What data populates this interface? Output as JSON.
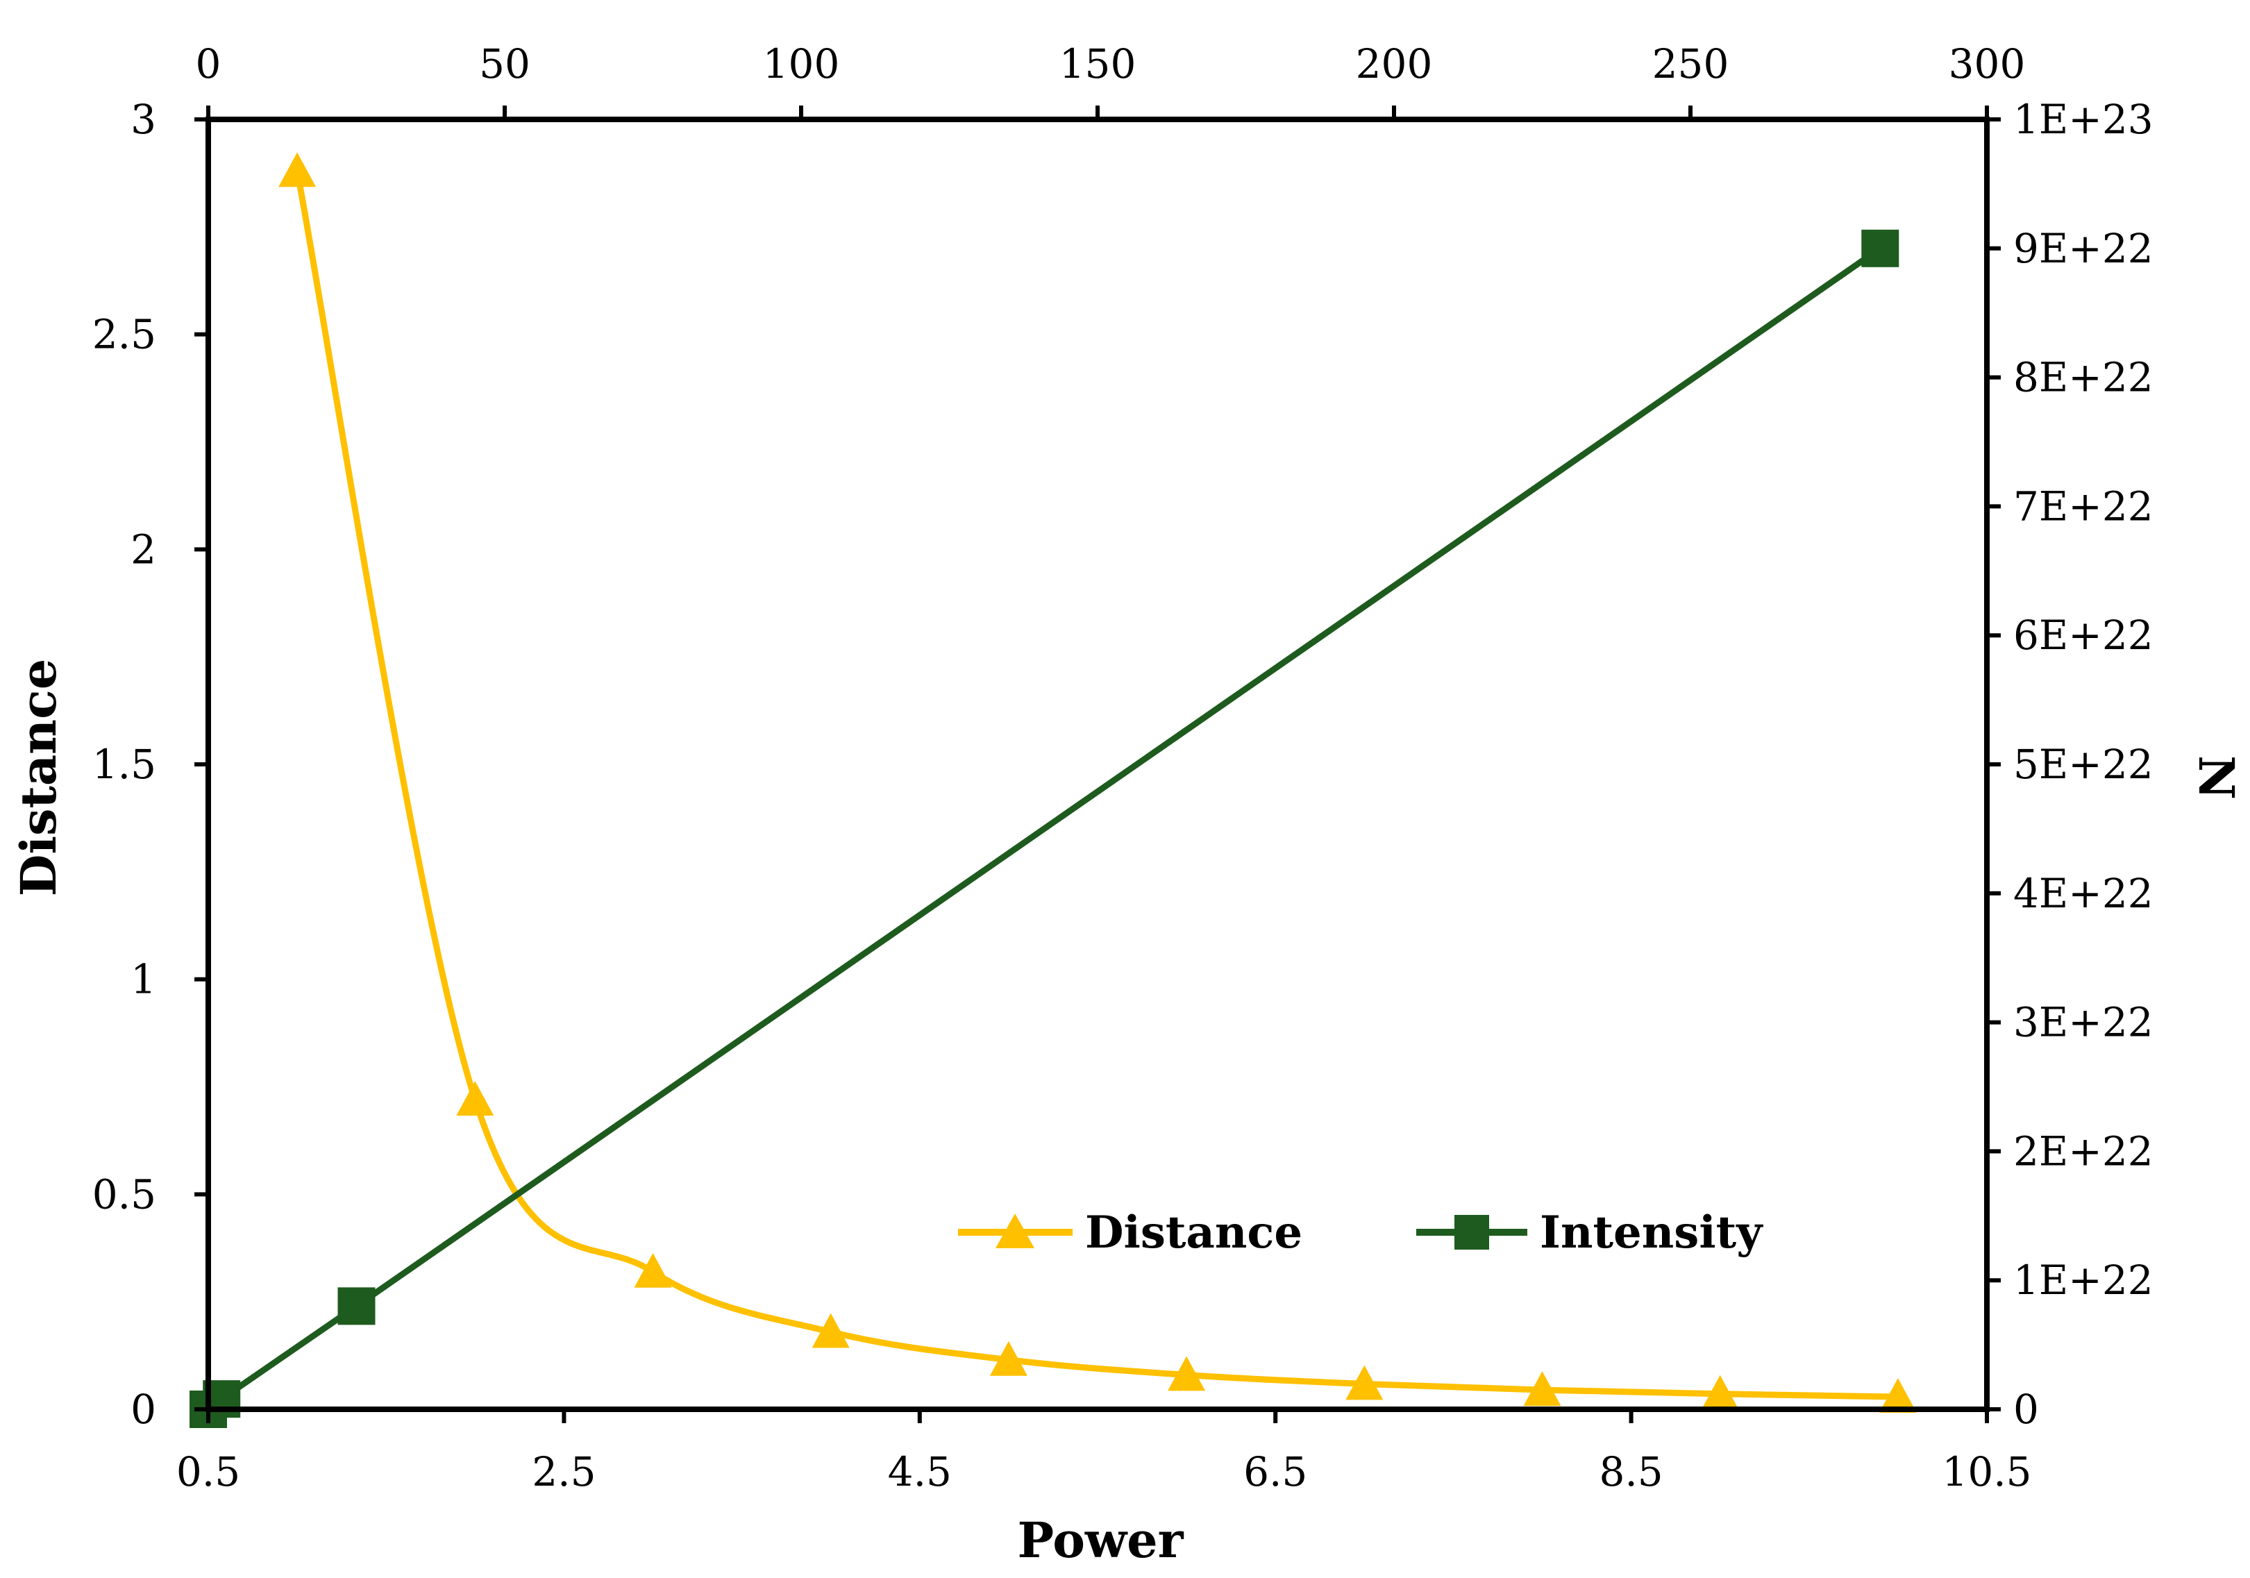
{
  "chart_data": {
    "type": "line",
    "xlabel": "Power",
    "ylabel": "Distance",
    "y2label": "N",
    "xlim": [
      0.5,
      10.5
    ],
    "x_ticks": [
      "0.5",
      "2.5",
      "4.5",
      "6.5",
      "8.5",
      "10.5"
    ],
    "x2lim": [
      0,
      300
    ],
    "x2_ticks": [
      "0",
      "50",
      "100",
      "150",
      "200",
      "250",
      "300"
    ],
    "ylim": [
      0,
      3
    ],
    "y_ticks": [
      "0",
      "0.5",
      "1",
      "1.5",
      "2",
      "2.5",
      "3"
    ],
    "y2lim": [
      0,
      1e+23
    ],
    "y2_ticks": [
      "0",
      "1E+22",
      "2E+22",
      "3E+22",
      "4E+22",
      "5E+22",
      "6E+22",
      "7E+22",
      "8E+22",
      "9E+22",
      "1E+23"
    ],
    "grid": false,
    "legend_position": "lower-right",
    "series": [
      {
        "name": "Distance",
        "color": "#FFC000",
        "marker": "triangle",
        "smooth": true,
        "axis": "primary",
        "x": [
          1,
          2,
          3,
          4,
          5,
          6,
          7,
          8,
          9,
          10
        ],
        "y": [
          2.88,
          0.72,
          0.32,
          0.18,
          0.115,
          0.08,
          0.059,
          0.045,
          0.036,
          0.029
        ]
      },
      {
        "name": "Intensity",
        "color": "#1E5B1E",
        "marker": "square",
        "smooth": false,
        "axis": "secondary",
        "x": [
          0,
          2.25,
          25,
          282
        ],
        "y": [
          0,
          8e+20,
          8e+21,
          9e+22
        ]
      }
    ]
  }
}
